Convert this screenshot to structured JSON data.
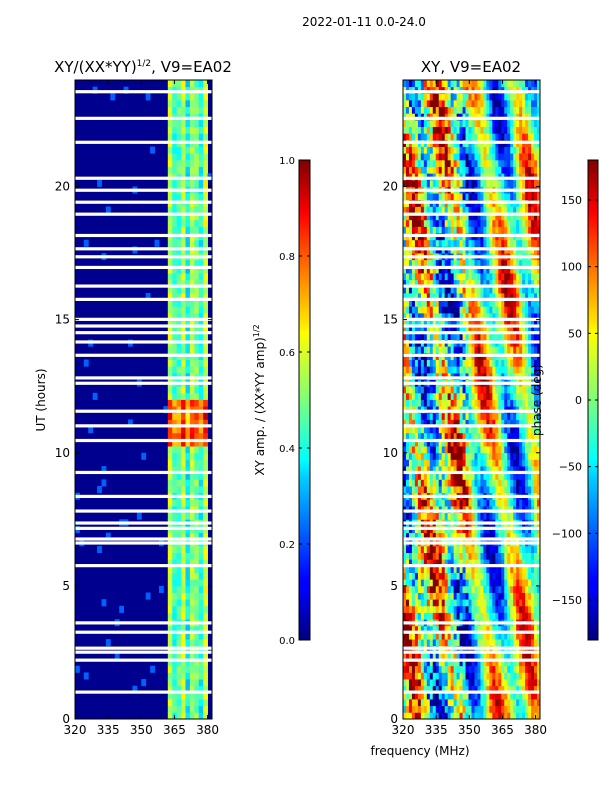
{
  "figure": {
    "suptitle": "2022-01-11 0.0-24.0",
    "xlabel": "frequency (MHz)"
  },
  "chart_data": [
    {
      "type": "heatmap",
      "title_main": "XY/(XX*YY)",
      "title_exp": "1/2",
      "title_suffix": ", V9=EA02",
      "ylabel": "UT (hours)",
      "xlim": [
        320,
        382
      ],
      "ylim": [
        0,
        24
      ],
      "xticks": [
        "320",
        "335",
        "350",
        "365",
        "380"
      ],
      "xtick_values": [
        320,
        335,
        350,
        365,
        380
      ],
      "yticks": [
        "0",
        "5",
        "10",
        "15",
        "20"
      ],
      "ytick_values": [
        0,
        5,
        10,
        15,
        20
      ],
      "colorbar": {
        "label_main": "XY amp. / (XX*YY amp)",
        "label_exp": "1/2",
        "range": [
          0.0,
          1.0
        ],
        "ticks": [
          "0.0",
          "0.2",
          "0.4",
          "0.6",
          "0.8",
          "1.0"
        ],
        "tick_values": [
          0.0,
          0.2,
          0.4,
          0.6,
          0.8,
          1.0
        ]
      }
    },
    {
      "type": "heatmap",
      "title": "XY, V9=EA02",
      "xlim": [
        320,
        382
      ],
      "ylim": [
        0,
        24
      ],
      "xticks": [
        "320",
        "335",
        "350",
        "365",
        "380"
      ],
      "xtick_values": [
        320,
        335,
        350,
        365,
        380
      ],
      "yticks": [
        "0",
        "5",
        "10",
        "15",
        "20"
      ],
      "ytick_values": [
        0,
        5,
        10,
        15,
        20
      ],
      "colorbar": {
        "label": "phase (deg)",
        "range": [
          -180,
          180
        ],
        "ticks": [
          "−150",
          "−100",
          "−50",
          "0",
          "50",
          "100",
          "150"
        ],
        "tick_values": [
          -150,
          -100,
          -50,
          0,
          50,
          100,
          150
        ]
      }
    }
  ],
  "flagged_ut_hours": [
    0.95,
    2.15,
    2.45,
    2.6,
    3.2,
    3.55,
    5.7,
    6.55,
    6.7,
    7.1,
    7.3,
    7.75,
    8.3,
    9.2,
    10.4,
    10.95,
    11.5,
    12.55,
    12.75,
    13.6,
    14.1,
    14.45,
    14.7,
    14.95,
    15.7,
    16.2,
    16.9,
    17.3,
    17.6,
    18.1,
    18.9,
    19.35,
    19.8,
    20.25,
    21.6,
    22.5,
    23.5
  ]
}
